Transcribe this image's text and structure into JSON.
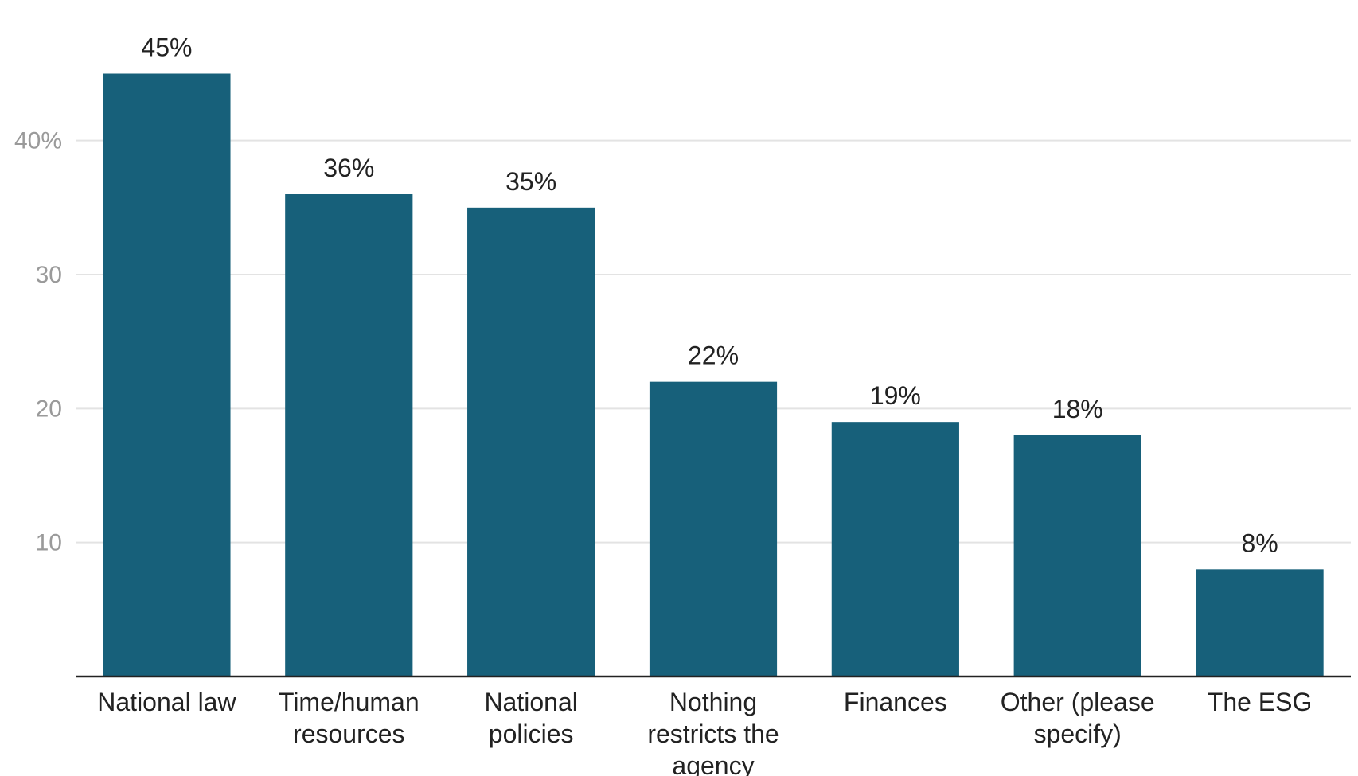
{
  "chart_data": {
    "type": "bar",
    "categories": [
      "National law",
      "Time/human resources",
      "National policies",
      "Nothing restricts the agency",
      "Finances",
      "Other (please specify)",
      "The ESG"
    ],
    "category_lines": [
      [
        "National law"
      ],
      [
        "Time/human",
        "resources"
      ],
      [
        "National",
        "policies"
      ],
      [
        "Nothing",
        "restricts the",
        "agency"
      ],
      [
        "Finances"
      ],
      [
        "Other (please",
        "specify)"
      ],
      [
        "The ESG"
      ]
    ],
    "values": [
      45,
      36,
      35,
      22,
      19,
      18,
      8
    ],
    "data_labels": [
      "45%",
      "36%",
      "35%",
      "22%",
      "19%",
      "18%",
      "8%"
    ],
    "yticks": [
      10,
      20,
      30,
      40
    ],
    "ytick_labels": [
      "10",
      "20",
      "30",
      "40%"
    ],
    "ylim": [
      0,
      48
    ],
    "grid": true,
    "title": "",
    "xlabel": "",
    "ylabel": "",
    "bar_color": "#17607a",
    "grid_color": "#e3e3e3",
    "axis_color": "#222222"
  }
}
